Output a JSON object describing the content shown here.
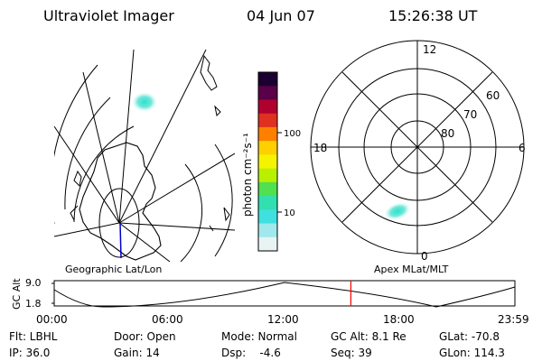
{
  "header": {
    "instrument": "Ultraviolet Imager",
    "date": "04 Jun 07",
    "time": "15:26:38 UT"
  },
  "left_map": {
    "caption": "Geographic Lat/Lon"
  },
  "colorbar": {
    "label": "photon cm⁻²s⁻¹",
    "ticks": [
      "100",
      "10"
    ],
    "scale": "log",
    "colors": [
      "#1a0030",
      "#5a0048",
      "#b00030",
      "#e03020",
      "#ff8000",
      "#ffd000",
      "#f4f400",
      "#b8f000",
      "#50e050",
      "#30e0b0",
      "#40e0e0",
      "#a0e8ec",
      "#e8f4f4"
    ]
  },
  "polar_plot": {
    "caption": "Apex MLat/MLT",
    "mlt_labels": [
      "12",
      "18",
      "6",
      "0"
    ],
    "lat_labels": [
      "60",
      "70",
      "80"
    ]
  },
  "altitude_strip": {
    "ylabel": "GC Alt",
    "yticks": [
      "9.0",
      "1.8"
    ],
    "xticks": [
      "00:00",
      "06:00",
      "12:00",
      "18:00",
      "23:59"
    ],
    "current_marker_time": "15:26:38",
    "marker_color": "#ff0000"
  },
  "status": {
    "row1": {
      "filter": "Flt: LBHL",
      "door": "Door: Open",
      "mode": "Mode: Normal",
      "gc_alt": "GC Alt: 8.1 Re",
      "glat": "GLat: -70.8"
    },
    "row2": {
      "ip": "IP: 36.0",
      "gain": "Gain: 14",
      "dsp": "Dsp:    -4.6",
      "seq": "Seq: 39",
      "glon": "GLon: 114.3"
    }
  }
}
